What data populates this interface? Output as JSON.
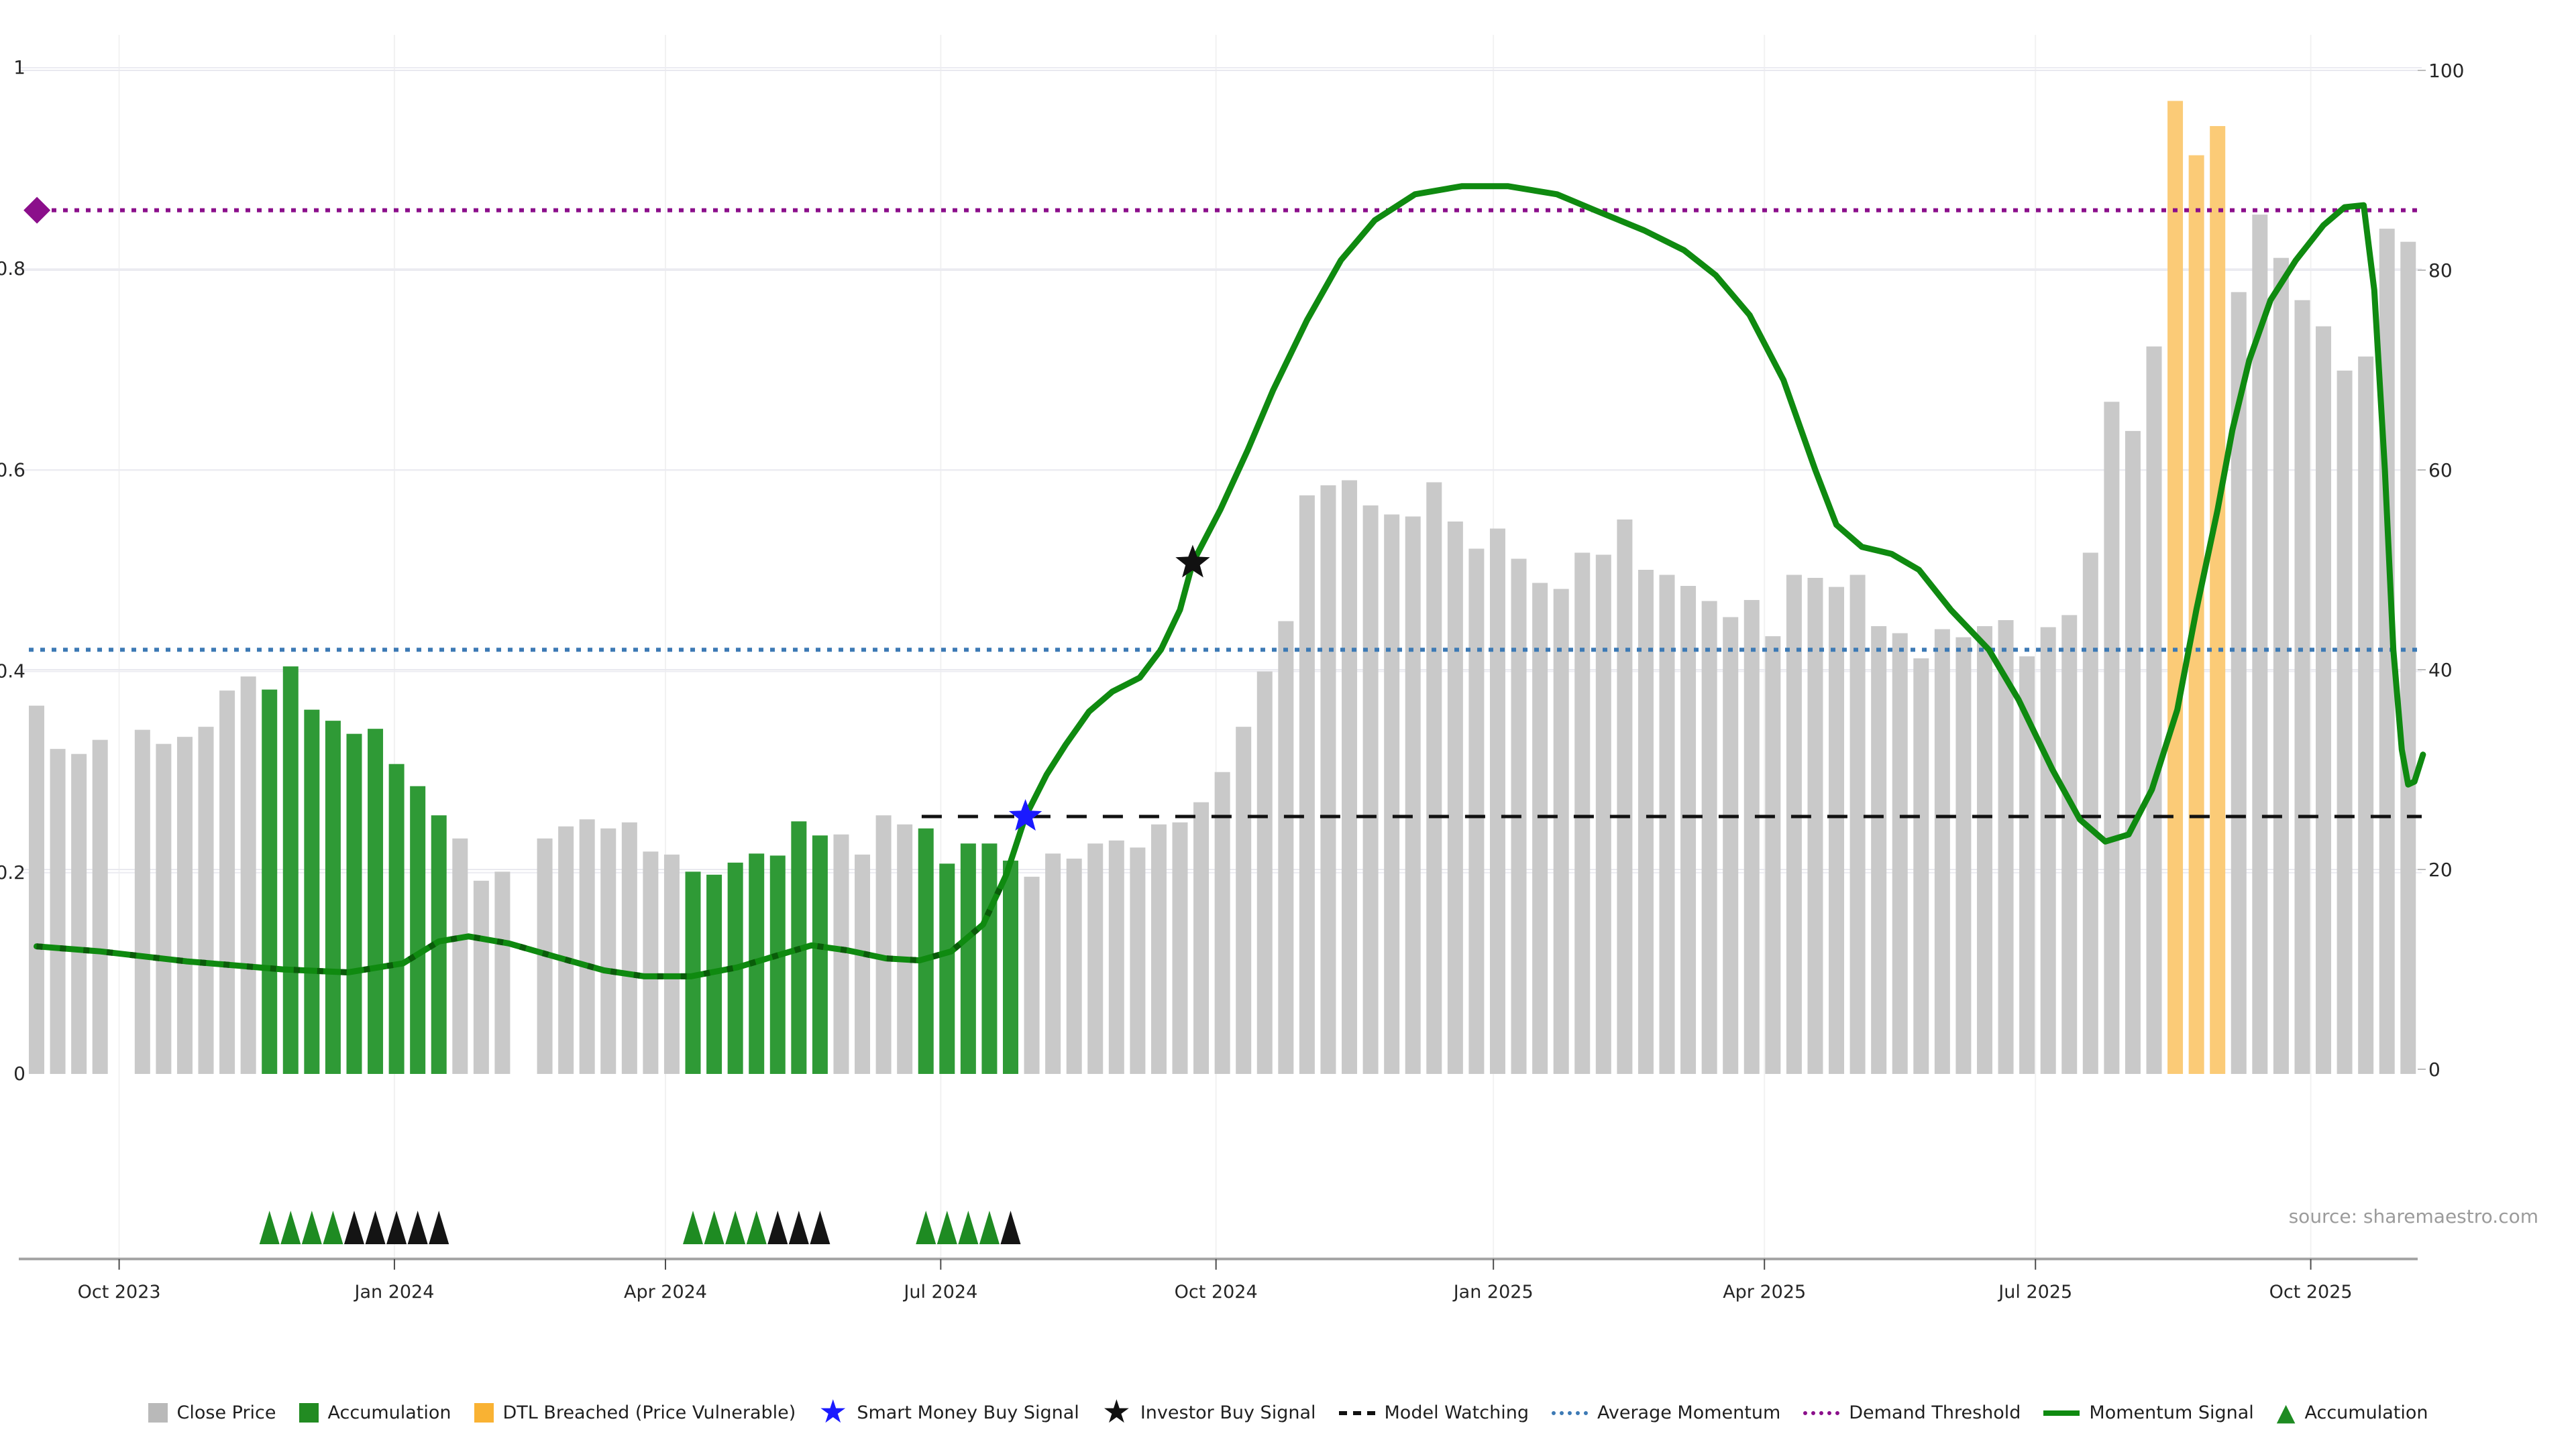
{
  "source_label": "source: sharemaestro.com",
  "colors": {
    "close_price_bar": "#c9c9c9",
    "accumulation_bar": "#2f9a36",
    "dtl_breached_bar": "#fbcb77",
    "momentum_line": "#0f8a10",
    "momentum_dormant_dash": "#0a5c0a",
    "average_momentum_line": "#3d7ab5",
    "demand_threshold_line": "#8b0f8b",
    "model_watching_line": "#111111",
    "smart_money_star": "#1a1aff",
    "investor_star": "#111111",
    "accumulation_triangle": "#1e8b22",
    "legend_accumulation_square": "#228b22",
    "legend_dtl_square": "#f9b233",
    "axis_text": "#262626",
    "grid_major": "#ececf2",
    "grid_vertical": "#f2f2f2",
    "axis_spine": "#a6a6a6"
  },
  "chart_data": {
    "type": "bar+line",
    "title": "",
    "xlabel": "",
    "ylabel_left": "",
    "ylabel_right": "",
    "y_left_ticks": [
      "0",
      "0.2",
      "0.4",
      "0.6",
      "0.8",
      "1"
    ],
    "y_left_values": [
      0,
      0.2,
      0.4,
      0.6,
      0.8,
      1.0
    ],
    "y_right_ticks": [
      "0",
      "20",
      "40",
      "60",
      "80",
      "100"
    ],
    "y_right_values": [
      0,
      20,
      40,
      60,
      80,
      100
    ],
    "x_ticks": [
      {
        "label": "Oct 2023",
        "week": 3.9
      },
      {
        "label": "Jan 2024",
        "week": 16.9
      },
      {
        "label": "Apr 2024",
        "week": 29.7
      },
      {
        "label": "Jul 2024",
        "week": 42.7
      },
      {
        "label": "Oct 2024",
        "week": 55.7
      },
      {
        "label": "Jan 2025",
        "week": 68.8
      },
      {
        "label": "Apr 2025",
        "week": 81.6
      },
      {
        "label": "Jul 2025",
        "week": 94.4
      },
      {
        "label": "Oct 2025",
        "week": 107.4
      }
    ],
    "bars_note": "weekly close price 0-1 scale; t: c=Close Price, a=Accumulation, d=DTL Breached, x=no data",
    "bars": [
      [
        0.366,
        "c"
      ],
      [
        0.323,
        "c"
      ],
      [
        0.318,
        "c"
      ],
      [
        0.332,
        "c"
      ],
      [
        null,
        "x"
      ],
      [
        0.342,
        "c"
      ],
      [
        0.328,
        "c"
      ],
      [
        0.335,
        "c"
      ],
      [
        0.345,
        "c"
      ],
      [
        0.381,
        "c"
      ],
      [
        0.395,
        "c"
      ],
      [
        0.382,
        "a"
      ],
      [
        0.405,
        "a"
      ],
      [
        0.362,
        "a"
      ],
      [
        0.351,
        "a"
      ],
      [
        0.338,
        "a"
      ],
      [
        0.343,
        "a"
      ],
      [
        0.308,
        "a"
      ],
      [
        0.286,
        "a"
      ],
      [
        0.257,
        "a"
      ],
      [
        0.234,
        "c"
      ],
      [
        0.192,
        "c"
      ],
      [
        0.201,
        "c"
      ],
      [
        null,
        "x"
      ],
      [
        0.234,
        "c"
      ],
      [
        0.246,
        "c"
      ],
      [
        0.253,
        "c"
      ],
      [
        0.244,
        "c"
      ],
      [
        0.25,
        "c"
      ],
      [
        0.221,
        "c"
      ],
      [
        0.218,
        "c"
      ],
      [
        0.201,
        "a"
      ],
      [
        0.198,
        "a"
      ],
      [
        0.21,
        "a"
      ],
      [
        0.219,
        "a"
      ],
      [
        0.217,
        "a"
      ],
      [
        0.251,
        "a"
      ],
      [
        0.237,
        "a"
      ],
      [
        0.238,
        "c"
      ],
      [
        0.218,
        "c"
      ],
      [
        0.257,
        "c"
      ],
      [
        0.248,
        "c"
      ],
      [
        0.244,
        "a"
      ],
      [
        0.209,
        "a"
      ],
      [
        0.229,
        "a"
      ],
      [
        0.229,
        "a"
      ],
      [
        0.212,
        "a"
      ],
      [
        0.196,
        "c"
      ],
      [
        0.219,
        "c"
      ],
      [
        0.214,
        "c"
      ],
      [
        0.229,
        "c"
      ],
      [
        0.232,
        "c"
      ],
      [
        0.225,
        "c"
      ],
      [
        0.248,
        "c"
      ],
      [
        0.25,
        "c"
      ],
      [
        0.27,
        "c"
      ],
      [
        0.3,
        "c"
      ],
      [
        0.345,
        "c"
      ],
      [
        0.4,
        "c"
      ],
      [
        0.45,
        "c"
      ],
      [
        0.575,
        "c"
      ],
      [
        0.585,
        "c"
      ],
      [
        0.59,
        "c"
      ],
      [
        0.565,
        "c"
      ],
      [
        0.556,
        "c"
      ],
      [
        0.554,
        "c"
      ],
      [
        0.588,
        "c"
      ],
      [
        0.549,
        "c"
      ],
      [
        0.522,
        "c"
      ],
      [
        0.542,
        "c"
      ],
      [
        0.512,
        "c"
      ],
      [
        0.488,
        "c"
      ],
      [
        0.482,
        "c"
      ],
      [
        0.518,
        "c"
      ],
      [
        0.516,
        "c"
      ],
      [
        0.551,
        "c"
      ],
      [
        0.501,
        "c"
      ],
      [
        0.496,
        "c"
      ],
      [
        0.485,
        "c"
      ],
      [
        0.47,
        "c"
      ],
      [
        0.454,
        "c"
      ],
      [
        0.471,
        "c"
      ],
      [
        0.435,
        "c"
      ],
      [
        0.496,
        "c"
      ],
      [
        0.493,
        "c"
      ],
      [
        0.484,
        "c"
      ],
      [
        0.496,
        "c"
      ],
      [
        0.445,
        "c"
      ],
      [
        0.438,
        "c"
      ],
      [
        0.413,
        "c"
      ],
      [
        0.442,
        "c"
      ],
      [
        0.434,
        "c"
      ],
      [
        0.445,
        "c"
      ],
      [
        0.451,
        "c"
      ],
      [
        0.415,
        "c"
      ],
      [
        0.444,
        "c"
      ],
      [
        0.456,
        "c"
      ],
      [
        0.518,
        "c"
      ],
      [
        0.668,
        "c"
      ],
      [
        0.639,
        "c"
      ],
      [
        0.723,
        "c"
      ],
      [
        0.967,
        "d"
      ],
      [
        0.913,
        "d"
      ],
      [
        0.942,
        "d"
      ],
      [
        0.777,
        "c"
      ],
      [
        0.854,
        "c"
      ],
      [
        0.811,
        "c"
      ],
      [
        0.769,
        "c"
      ],
      [
        0.743,
        "c"
      ],
      [
        0.699,
        "c"
      ],
      [
        0.713,
        "c"
      ],
      [
        0.84,
        "c"
      ],
      [
        0.827,
        "c"
      ]
    ],
    "momentum_signal_note": "[week index, momentum 0-100]",
    "momentum_signal": [
      [
        0,
        12.3
      ],
      [
        3.0,
        11.8
      ],
      [
        7.1,
        10.8
      ],
      [
        11.6,
        10.0
      ],
      [
        14.7,
        9.7
      ],
      [
        17.3,
        10.6
      ],
      [
        19.0,
        12.8
      ],
      [
        20.4,
        13.3
      ],
      [
        22.3,
        12.6
      ],
      [
        24.6,
        11.2
      ],
      [
        26.8,
        9.9
      ],
      [
        28.7,
        9.3
      ],
      [
        30.9,
        9.3
      ],
      [
        33.1,
        10.2
      ],
      [
        35.0,
        11.4
      ],
      [
        36.6,
        12.4
      ],
      [
        38.3,
        11.9
      ],
      [
        40.1,
        11.1
      ],
      [
        41.7,
        10.9
      ],
      [
        43.2,
        11.8
      ],
      [
        44.7,
        14.5
      ],
      [
        45.8,
        19.5
      ],
      [
        46.7,
        25.3
      ],
      [
        47.7,
        29.5
      ],
      [
        48.6,
        32.5
      ],
      [
        49.7,
        35.8
      ],
      [
        50.8,
        37.8
      ],
      [
        52.1,
        39.2
      ],
      [
        53.1,
        42.0
      ],
      [
        54.0,
        46.0
      ],
      [
        54.6,
        50.7
      ],
      [
        55.9,
        56.0
      ],
      [
        57.2,
        62.0
      ],
      [
        58.4,
        68.0
      ],
      [
        60.0,
        75.0
      ],
      [
        61.6,
        81.0
      ],
      [
        63.2,
        85.0
      ],
      [
        65.1,
        87.6
      ],
      [
        67.3,
        88.4
      ],
      [
        69.5,
        88.4
      ],
      [
        71.8,
        87.6
      ],
      [
        73.6,
        86.0
      ],
      [
        75.9,
        84.0
      ],
      [
        77.8,
        82.0
      ],
      [
        79.3,
        79.5
      ],
      [
        80.9,
        75.5
      ],
      [
        82.5,
        69.0
      ],
      [
        84.0,
        60.0
      ],
      [
        85.0,
        54.5
      ],
      [
        86.2,
        52.3
      ],
      [
        87.6,
        51.6
      ],
      [
        88.9,
        50.0
      ],
      [
        90.4,
        46.0
      ],
      [
        92.2,
        42.0
      ],
      [
        93.6,
        37.0
      ],
      [
        95.2,
        30.0
      ],
      [
        96.5,
        25.0
      ],
      [
        97.7,
        22.8
      ],
      [
        98.8,
        23.5
      ],
      [
        99.9,
        28.0
      ],
      [
        101.1,
        36.0
      ],
      [
        102.0,
        46.0
      ],
      [
        103.0,
        56.0
      ],
      [
        103.7,
        64.0
      ],
      [
        104.5,
        71.0
      ],
      [
        105.5,
        77.0
      ],
      [
        106.7,
        81.0
      ],
      [
        108.0,
        84.5
      ],
      [
        109.0,
        86.3
      ],
      [
        109.9,
        86.5
      ],
      [
        110.4,
        78.0
      ],
      [
        110.9,
        60.0
      ],
      [
        111.3,
        42.0
      ],
      [
        111.7,
        32.0
      ],
      [
        112.0,
        28.5
      ],
      [
        112.3,
        28.8
      ],
      [
        112.7,
        31.5
      ]
    ],
    "dormant_dash_until_week": 46.2,
    "reference_lines": {
      "average_momentum": 42,
      "demand_threshold": 86,
      "model_watching": {
        "value": 25.3,
        "start_week": 41.8
      }
    },
    "signals": {
      "smart_money_buy": {
        "week": 46.7,
        "value": 25.3
      },
      "investor_buy": {
        "week": 54.6,
        "value": 50.7
      },
      "demand_threshold_diamond": {
        "week": 0.02,
        "value": 86
      }
    },
    "accumulation_markers": {
      "green_weeks": [
        11,
        12,
        13,
        14,
        31,
        32,
        33,
        34,
        42,
        43,
        44,
        45
      ],
      "black_weeks": [
        15,
        16,
        17,
        18,
        19,
        35,
        36,
        37,
        46
      ]
    },
    "legend_position": "bottom-center",
    "grid": true
  },
  "legend": {
    "items": [
      {
        "type": "square",
        "color": "#b9b9b9",
        "label": "Close Price"
      },
      {
        "type": "square",
        "color": "#228b22",
        "label": "Accumulation"
      },
      {
        "type": "square",
        "color": "#f9b233",
        "label": "DTL Breached (Price Vulnerable)"
      },
      {
        "type": "star",
        "color": "#1a1aff",
        "label": "Smart Money Buy Signal"
      },
      {
        "type": "star",
        "color": "#111111",
        "label": "Investor Buy Signal"
      },
      {
        "type": "dashed",
        "color": "#111111",
        "label": "Model Watching"
      },
      {
        "type": "dotted",
        "color": "#3d7ab5",
        "label": "Average Momentum"
      },
      {
        "type": "dotted",
        "color": "#8b0f8b",
        "label": "Demand Threshold"
      },
      {
        "type": "solid",
        "color": "#0f8a10",
        "label": "Momentum Signal"
      },
      {
        "type": "triangle",
        "color": "#1e8b22",
        "label": "Accumulation"
      }
    ]
  }
}
